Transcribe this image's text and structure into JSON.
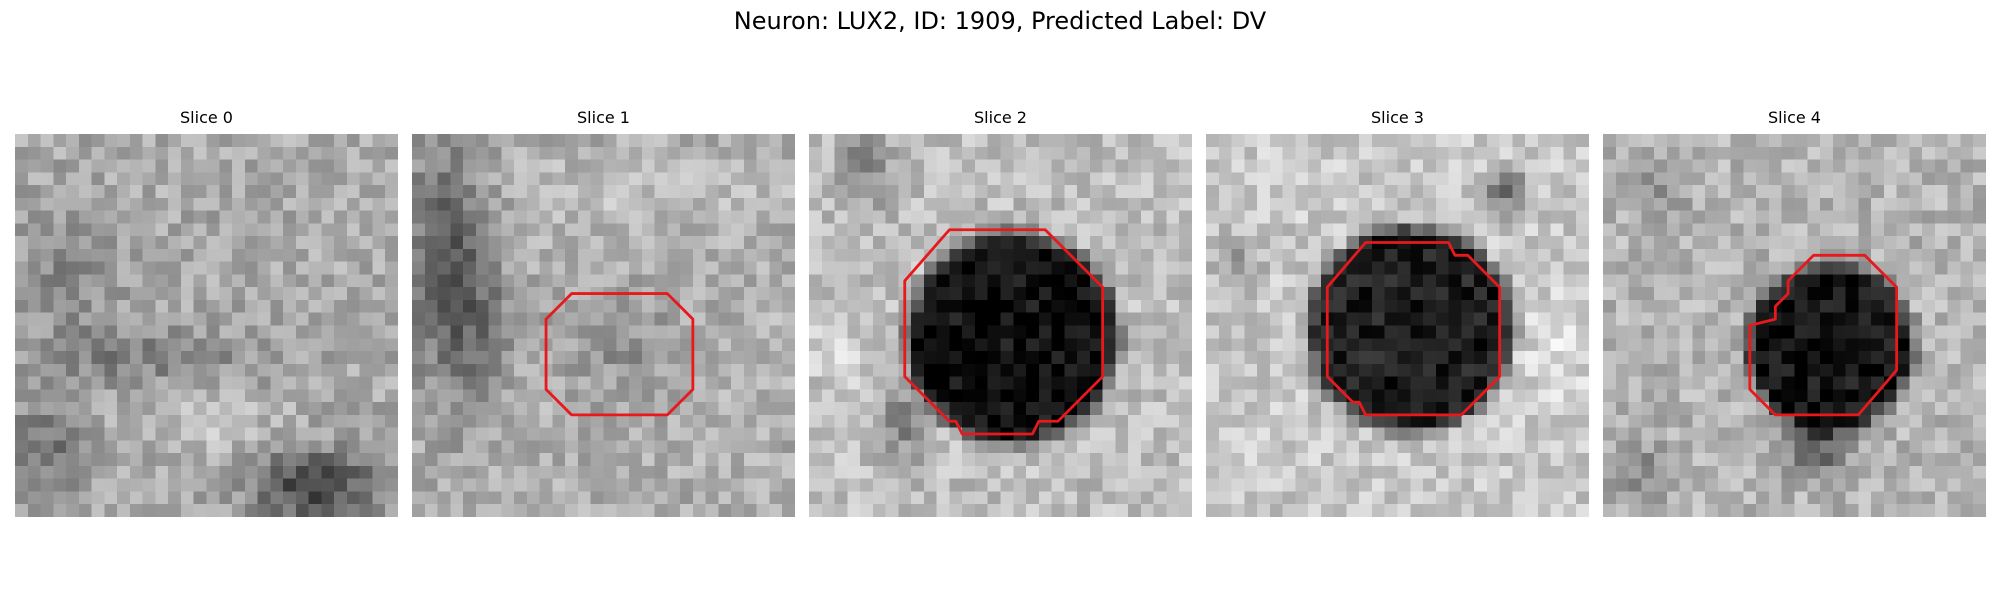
{
  "figure": {
    "title": "Neuron: LUX2, ID: 1909, Predicted Label: DV"
  },
  "outline_color": "#e8191c",
  "panels": [
    {
      "title": "Slice 0",
      "image": "grayscale-microscopy-patch",
      "outline": false
    },
    {
      "title": "Slice 1",
      "image": "grayscale-microscopy-patch",
      "outline": true
    },
    {
      "title": "Slice 2",
      "image": "grayscale-microscopy-patch",
      "outline": true
    },
    {
      "title": "Slice 3",
      "image": "grayscale-microscopy-patch",
      "outline": true
    },
    {
      "title": "Slice 4",
      "image": "grayscale-microscopy-patch",
      "outline": true
    }
  ]
}
